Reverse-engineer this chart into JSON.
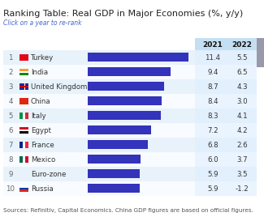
{
  "title": "Ranking Table: Real GDP in Major Economies (%, y/y)",
  "subtitle": "Click on a year to re-rank",
  "source": "Sources: Refinitiv, Capital Economics. China GDP figures are based on official figures.",
  "countries": [
    "Turkey",
    "India",
    "United Kingdom",
    "China",
    "Italy",
    "Egypt",
    "France",
    "Mexico",
    "Euro-zone",
    "Russia"
  ],
  "ranks": [
    1,
    2,
    3,
    4,
    5,
    6,
    7,
    8,
    9,
    10
  ],
  "values_2021": [
    11.4,
    9.4,
    8.7,
    8.4,
    8.3,
    7.2,
    6.8,
    6.0,
    5.9,
    5.9
  ],
  "values_2022": [
    5.5,
    6.5,
    4.3,
    3.0,
    4.1,
    4.2,
    2.6,
    3.7,
    3.5,
    -1.2
  ],
  "bar_color": "#3333bb",
  "bar_max": 12.0,
  "col_header_bg": "#c5dff2",
  "col_2021_bg": "#ddeeff",
  "row_alt_color": "#e8f2fb",
  "row_normal_color": "#f8fbff",
  "title_fontsize": 8.0,
  "subtitle_fontsize": 5.5,
  "label_fontsize": 6.2,
  "source_fontsize": 5.2,
  "header_fontsize": 6.5,
  "scrollbar_color": "#9999aa",
  "flag_colors": {
    "Turkey": [
      "#E30A17"
    ],
    "India": [
      "#FF9933",
      "#138808"
    ],
    "United Kingdom": [
      "#003399",
      "#CC0000"
    ],
    "China": [
      "#DE2910"
    ],
    "Italy": [
      "#009246",
      "#CE2B37"
    ],
    "Egypt": [
      "#CE1126",
      "#000000"
    ],
    "France": [
      "#002395",
      "#ED2939"
    ],
    "Mexico": [
      "#006847",
      "#CE1126"
    ],
    "Euro-zone": [],
    "Russia": [
      "#FFFFFF",
      "#0039A6",
      "#D52B1E"
    ]
  }
}
